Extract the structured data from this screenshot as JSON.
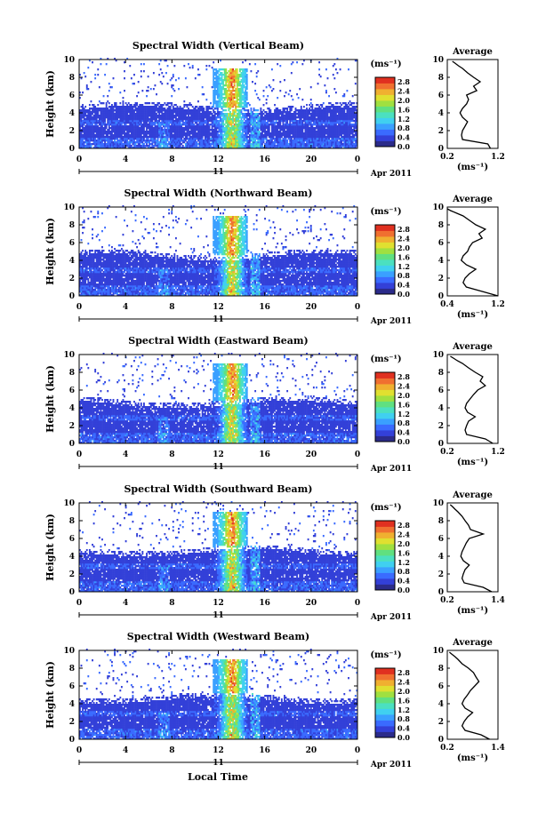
{
  "chart_data": {
    "type": "heatmap",
    "xlabel": "Local Time",
    "ylabel": "Height (km)",
    "date_label": "Apr 2011",
    "day_label": "11",
    "xticks": [
      "0",
      "4",
      "8",
      "12",
      "16",
      "20",
      "0"
    ],
    "xlim": [
      0,
      24
    ],
    "ylim": [
      0,
      10
    ],
    "yticks": [
      "0",
      "2",
      "4",
      "6",
      "8",
      "10"
    ],
    "colorbar_unit": "(ms⁻¹)",
    "colorbar_ticks": [
      "0.0",
      "0.4",
      "0.8",
      "1.2",
      "1.6",
      "2.0",
      "2.4",
      "2.8"
    ],
    "colorbar_range": [
      0,
      3.0
    ],
    "avg_title": "Average",
    "avg_xlabel": "(ms⁻¹)",
    "panels": [
      {
        "title": "Spectral Width (Vertical Beam)",
        "avg_xticks": [
          "0.2",
          "1.2"
        ],
        "avg_xlim": [
          0.2,
          1.2
        ],
        "avg_profile_x": [
          1.05,
          1.0,
          0.5,
          0.48,
          0.5,
          0.55,
          0.6,
          0.5,
          0.45,
          0.5,
          0.58,
          0.62,
          0.58,
          0.78,
          0.72,
          0.85,
          0.72,
          0.6,
          0.5,
          0.42,
          0.35,
          0.3
        ],
        "avg_profile_y": [
          0.0,
          0.5,
          1.0,
          1.5,
          2.0,
          2.5,
          3.0,
          3.5,
          4.0,
          4.5,
          5.0,
          5.5,
          6.0,
          6.5,
          7.0,
          7.5,
          8.0,
          8.5,
          9.0,
          9.3,
          9.6,
          9.8
        ]
      },
      {
        "title": "Spectral Width (Northward Beam)",
        "avg_xticks": [
          "0.4",
          "1.2"
        ],
        "avg_xlim": [
          0.4,
          1.2
        ],
        "avg_profile_x": [
          1.2,
          0.95,
          0.7,
          0.65,
          0.68,
          0.75,
          0.85,
          0.7,
          0.62,
          0.65,
          0.72,
          0.75,
          0.8,
          0.95,
          0.9,
          1.0,
          0.85,
          0.75,
          0.65,
          0.55,
          0.45,
          0.4
        ],
        "avg_profile_y": [
          0.0,
          0.5,
          1.0,
          1.5,
          2.0,
          2.5,
          3.0,
          3.5,
          4.0,
          4.5,
          5.0,
          5.5,
          6.0,
          6.5,
          7.0,
          7.5,
          8.0,
          8.5,
          9.0,
          9.3,
          9.6,
          9.8
        ]
      },
      {
        "title": "Spectral Width (Eastward Beam)",
        "avg_xticks": [
          "0.2",
          "1.2"
        ],
        "avg_xlim": [
          0.2,
          1.2
        ],
        "avg_profile_x": [
          1.1,
          0.95,
          0.58,
          0.55,
          0.58,
          0.62,
          0.75,
          0.6,
          0.55,
          0.58,
          0.65,
          0.72,
          0.8,
          0.95,
          0.85,
          0.9,
          0.75,
          0.62,
          0.5,
          0.4,
          0.32,
          0.26
        ],
        "avg_profile_y": [
          0.0,
          0.5,
          1.0,
          1.5,
          2.0,
          2.5,
          3.0,
          3.5,
          4.0,
          4.5,
          5.0,
          5.5,
          6.0,
          6.5,
          7.0,
          7.5,
          8.0,
          8.5,
          9.0,
          9.3,
          9.6,
          9.8
        ]
      },
      {
        "title": "Spectral Width (Southward Beam)",
        "avg_xticks": [
          "0.2",
          "1.4"
        ],
        "avg_xlim": [
          0.2,
          1.4
        ],
        "avg_profile_x": [
          1.25,
          1.05,
          0.6,
          0.55,
          0.58,
          0.62,
          0.72,
          0.58,
          0.52,
          0.55,
          0.6,
          0.65,
          0.72,
          1.05,
          0.75,
          0.7,
          0.62,
          0.55,
          0.45,
          0.38,
          0.32,
          0.27
        ],
        "avg_profile_y": [
          0.0,
          0.5,
          1.0,
          1.5,
          2.0,
          2.5,
          3.0,
          3.5,
          4.0,
          4.5,
          5.0,
          5.5,
          6.0,
          6.5,
          7.0,
          7.5,
          8.0,
          8.5,
          9.0,
          9.3,
          9.6,
          9.8
        ]
      },
      {
        "title": "Spectral Width (Westward Beam)",
        "avg_xticks": [
          "0.2",
          "1.4"
        ],
        "avg_xlim": [
          0.2,
          1.4
        ],
        "avg_profile_x": [
          1.2,
          1.0,
          0.62,
          0.55,
          0.6,
          0.68,
          0.8,
          0.62,
          0.55,
          0.6,
          0.68,
          0.75,
          0.85,
          0.95,
          0.88,
          0.82,
          0.7,
          0.55,
          0.45,
          0.38,
          0.3,
          0.25
        ],
        "avg_profile_y": [
          0.0,
          0.5,
          1.0,
          1.5,
          2.0,
          2.5,
          3.0,
          3.5,
          4.0,
          4.5,
          5.0,
          5.5,
          6.0,
          6.5,
          7.0,
          7.5,
          8.0,
          8.5,
          9.0,
          9.3,
          9.6,
          9.8
        ]
      }
    ],
    "colors": {
      "scale": [
        "#2b2b8a",
        "#3340d8",
        "#3a6bff",
        "#3aa0ff",
        "#40d0f0",
        "#4be0c0",
        "#60e080",
        "#a0e040",
        "#e0e030",
        "#f0b030",
        "#f07030",
        "#e03020"
      ],
      "axis": "#000000"
    }
  }
}
